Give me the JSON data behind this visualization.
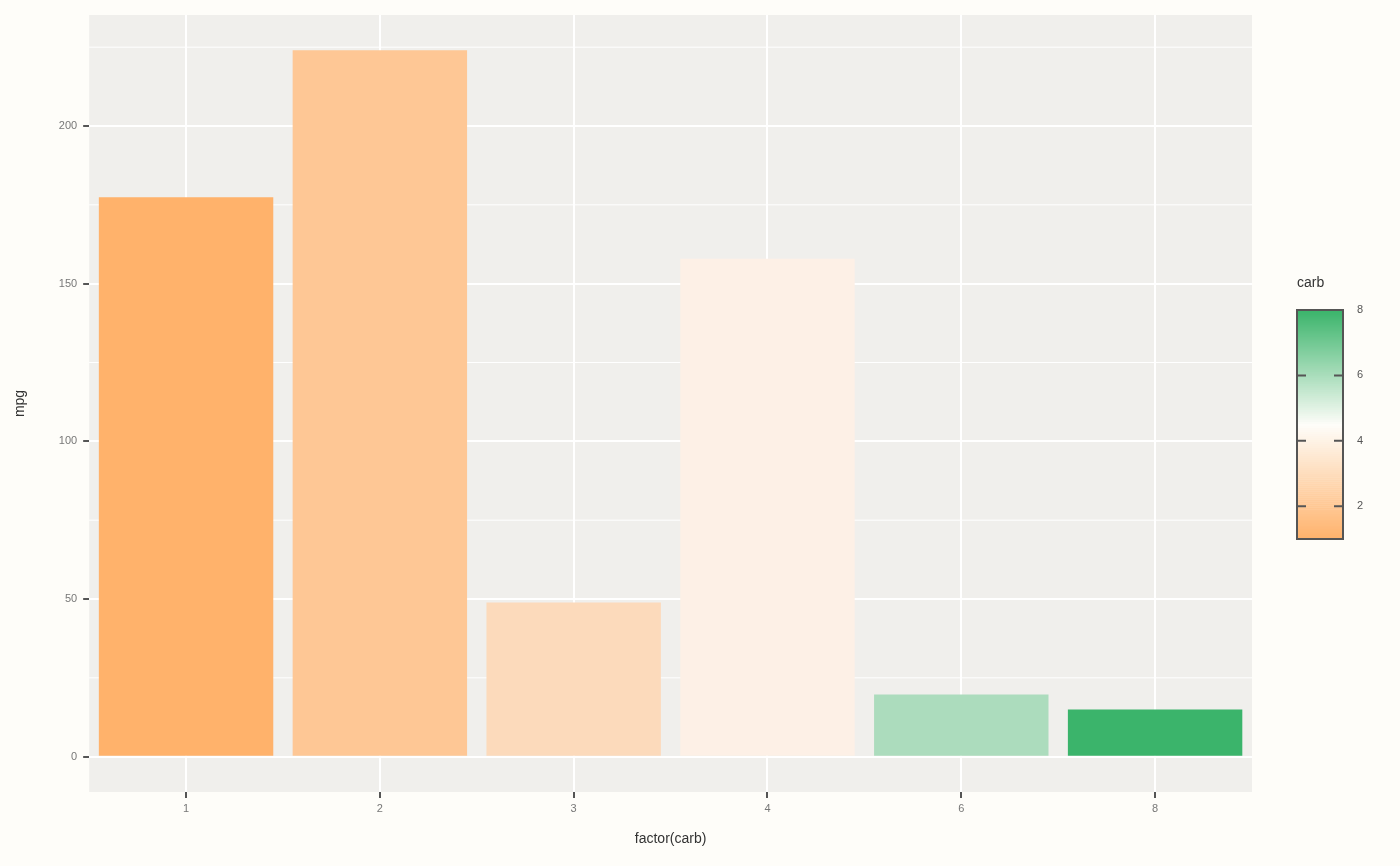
{
  "chart_data": {
    "type": "bar",
    "xlabel": "factor(carb)",
    "ylabel": "mpg",
    "clabel": "carb",
    "categories": [
      "1",
      "2",
      "3",
      "4",
      "6",
      "8"
    ],
    "values": [
      177.4,
      224.0,
      48.9,
      157.9,
      19.7,
      15.0
    ],
    "colors": [
      "#ffb26b",
      "#fec795",
      "#fcdabb",
      "#fdf0e6",
      "#acdcbd",
      "#3bb46b"
    ],
    "ylim": [
      -11.2,
      235.2
    ],
    "yticks": [
      0,
      50,
      100,
      150,
      200
    ],
    "grid": true,
    "clim": [
      1,
      8
    ],
    "cticks": [
      2,
      4,
      6,
      8
    ],
    "legend": false
  }
}
